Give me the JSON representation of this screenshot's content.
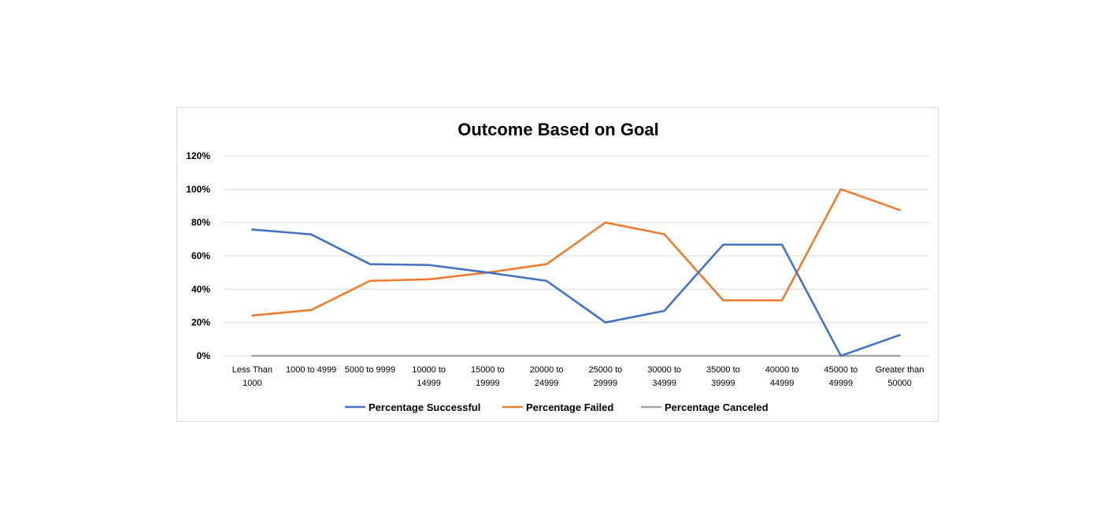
{
  "chart_data": {
    "type": "line",
    "title": "Outcome Based on Goal",
    "xlabel": "",
    "ylabel": "",
    "ylim": [
      0,
      120
    ],
    "yticks": [
      "0%",
      "20%",
      "40%",
      "60%",
      "80%",
      "100%",
      "120%"
    ],
    "grid": true,
    "legend_position": "bottom",
    "categories": [
      [
        "Less Than",
        "1000"
      ],
      [
        "1000 to 4999"
      ],
      [
        "5000 to 9999"
      ],
      [
        "10000 to",
        "14999"
      ],
      [
        "15000 to",
        "19999"
      ],
      [
        "20000 to",
        "24999"
      ],
      [
        "25000 to",
        "29999"
      ],
      [
        "30000 to",
        "34999"
      ],
      [
        "35000 to",
        "39999"
      ],
      [
        "40000 to",
        "44999"
      ],
      [
        "45000 to",
        "49999"
      ],
      [
        "Greater than",
        "50000"
      ]
    ],
    "series": [
      {
        "name": "Percentage Successful",
        "color": "#4472c4",
        "values": [
          75.8,
          72.9,
          55,
          54.5,
          50,
          45,
          20,
          27,
          66.7,
          66.7,
          0,
          12.5
        ]
      },
      {
        "name": "Percentage Failed",
        "color": "#ed7d31",
        "values": [
          24.2,
          27.5,
          45,
          45.9,
          50,
          55,
          80,
          73,
          33.3,
          33.3,
          100,
          87.5
        ]
      },
      {
        "name": "Percentage Canceled",
        "color": "#a5a5a5",
        "values": [
          0,
          0,
          0,
          0,
          0,
          0,
          0,
          0,
          0,
          0,
          0,
          0
        ]
      }
    ]
  },
  "colors": {
    "gridline": "#d9d9d9",
    "frame_border": "#d9d9d9"
  }
}
